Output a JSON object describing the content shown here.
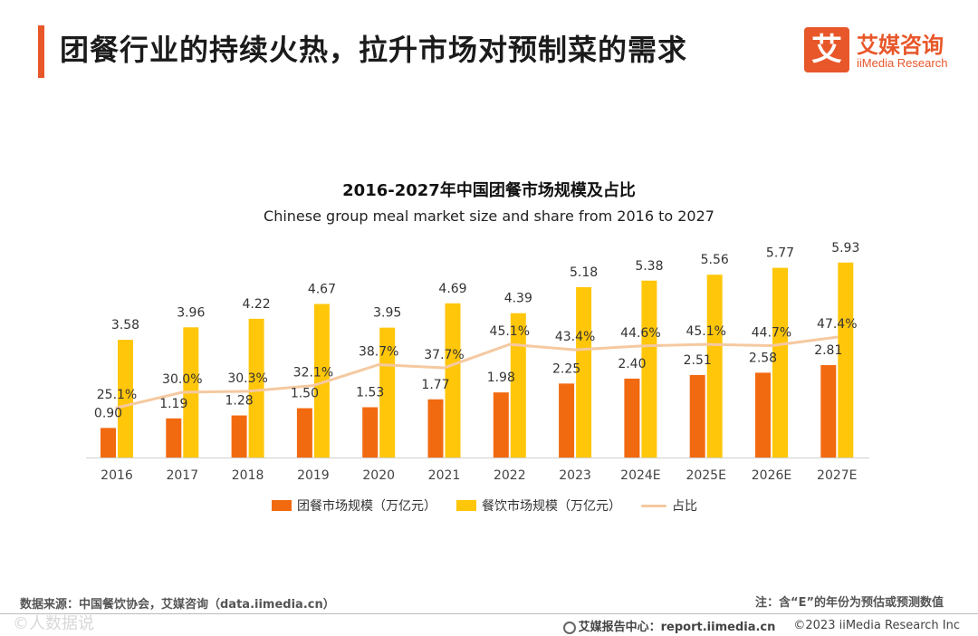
{
  "header": {
    "title": "团餐行业的持续火热，拉升市场对预制菜的需求",
    "logo_mark": "艾",
    "logo_cn": "艾媒咨询",
    "logo_en": "iiMedia Research"
  },
  "colors": {
    "accent": "#e8572a",
    "group_meal_bar": "#f26a10",
    "catering_bar": "#ffc60a",
    "share_line": "#f5c9a0"
  },
  "chart_data": {
    "type": "bar",
    "title": "2016-2027年中国团餐市场规模及占比",
    "subtitle": "Chinese group meal market size and share from 2016 to 2027",
    "categories": [
      "2016",
      "2017",
      "2018",
      "2019",
      "2020",
      "2021",
      "2022",
      "2023",
      "2024E",
      "2025E",
      "2026E",
      "2027E"
    ],
    "series": [
      {
        "name": "团餐市场规模（万亿元）",
        "type": "bar",
        "values": [
          0.9,
          1.19,
          1.28,
          1.5,
          1.53,
          1.77,
          1.98,
          2.25,
          2.4,
          2.51,
          2.58,
          2.81
        ],
        "labels": [
          "0.90",
          "1.19",
          "1.28",
          "1.50",
          "1.53",
          "1.77",
          "1.98",
          "2.25",
          "2.40",
          "2.51",
          "2.58",
          "2.81"
        ]
      },
      {
        "name": "餐饮市场规模（万亿元）",
        "type": "bar",
        "values": [
          3.58,
          3.96,
          4.22,
          4.67,
          3.95,
          4.69,
          4.39,
          5.18,
          5.38,
          5.56,
          5.77,
          5.93
        ],
        "labels": [
          "3.58",
          "3.96",
          "4.22",
          "4.67",
          "3.95",
          "4.69",
          "4.39",
          "5.18",
          "5.38",
          "5.56",
          "5.77",
          "5.93"
        ]
      },
      {
        "name": "占比",
        "type": "line",
        "values": [
          25.1,
          30.0,
          30.3,
          32.1,
          38.7,
          37.7,
          45.1,
          43.4,
          44.6,
          45.1,
          44.7,
          47.4
        ],
        "labels": [
          "25.1%",
          "30.0%",
          "30.3%",
          "32.1%",
          "38.7%",
          "37.7%",
          "45.1%",
          "43.4%",
          "44.6%",
          "45.1%",
          "44.7%",
          "47.4%"
        ]
      }
    ],
    "ylim": [
      0,
      6.2
    ],
    "legend": "bottom",
    "grid": false
  },
  "footer": {
    "source": "数据来源：中国餐饮协会，艾媒咨询（data.iimedia.cn）",
    "note": "注：含“E”的年份为预估或预测数值",
    "report_center": "艾媒报告中心：report.iimedia.cn",
    "copyright": "©2023  iiMedia Research  Inc",
    "watermark": "©人数据说"
  }
}
